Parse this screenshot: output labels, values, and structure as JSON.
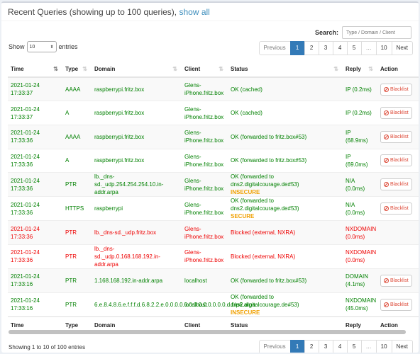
{
  "header": {
    "title": "Recent Queries (showing up to 100 queries),",
    "show_all": "show all"
  },
  "search": {
    "label": "Search:",
    "placeholder": "Type / Domain / Client"
  },
  "length": {
    "show": "Show",
    "value": "10",
    "entries": "entries"
  },
  "pagination": [
    "Previous",
    "1",
    "2",
    "3",
    "4",
    "5",
    "…",
    "10",
    "Next"
  ],
  "columns": [
    "Time",
    "Type",
    "Domain",
    "Client",
    "Status",
    "Reply",
    "Action"
  ],
  "rows": [
    {
      "time": "2021-01-24 17:33:37",
      "type": "AAAA",
      "domain": "raspberrypi.fritz.box",
      "client": "Glens-iPhone.fritz.box",
      "status": "OK (cached)",
      "status2": "",
      "reply": "IP (0.2ms)",
      "action": "Blacklist",
      "blocked": false
    },
    {
      "time": "2021-01-24 17:33:37",
      "type": "A",
      "domain": "raspberrypi.fritz.box",
      "client": "Glens-iPhone.fritz.box",
      "status": "OK (cached)",
      "status2": "",
      "reply": "IP (0.2ms)",
      "action": "Blacklist",
      "blocked": false
    },
    {
      "time": "2021-01-24 17:33:36",
      "type": "AAAA",
      "domain": "raspberrypi.fritz.box",
      "client": "Glens-iPhone.fritz.box",
      "status": "OK (forwarded to fritz.box#53)",
      "status2": "",
      "reply": "IP (68.9ms)",
      "action": "Blacklist",
      "blocked": false
    },
    {
      "time": "2021-01-24 17:33:36",
      "type": "A",
      "domain": "raspberrypi.fritz.box",
      "client": "Glens-iPhone.fritz.box",
      "status": "OK (forwarded to fritz.box#53)",
      "status2": "",
      "reply": "IP (69.0ms)",
      "action": "Blacklist",
      "blocked": false
    },
    {
      "time": "2021-01-24 17:33:36",
      "type": "PTR",
      "domain": "lb._dns-sd._udp.254.254.254.10.in-addr.arpa",
      "client": "Glens-iPhone.fritz.box",
      "status": "OK (forwarded to dns2.digitalcourage.de#53)",
      "status2": "INSECURE",
      "reply": "N/A (0.0ms)",
      "action": "Blacklist",
      "blocked": false
    },
    {
      "time": "2021-01-24 17:33:36",
      "type": "HTTPS",
      "domain": "raspberrypi",
      "client": "Glens-iPhone.fritz.box",
      "status": "OK (forwarded to dns2.digitalcourage.de#53)",
      "status2": "SECURE",
      "reply": "N/A (0.0ms)",
      "action": "Blacklist",
      "blocked": false
    },
    {
      "time": "2021-01-24 17:33:36",
      "type": "PTR",
      "domain": "lb._dns-sd._udp.fritz.box",
      "client": "Glens-iPhone.fritz.box",
      "status": "Blocked (external, NXRA)",
      "status2": "",
      "reply": "NXDOMAIN (0.0ms)",
      "action": "",
      "blocked": true
    },
    {
      "time": "2021-01-24 17:33:36",
      "type": "PTR",
      "domain": "lb._dns-sd._udp.0.168.168.192.in-addr.arpa",
      "client": "Glens-iPhone.fritz.box",
      "status": "Blocked (external, NXRA)",
      "status2": "",
      "reply": "NXDOMAIN (0.0ms)",
      "action": "",
      "blocked": true
    },
    {
      "time": "2021-01-24 17:33:16",
      "type": "PTR",
      "domain": "1.168.168.192.in-addr.arpa",
      "client": "localhost",
      "status": "OK (forwarded to fritz.box#53)",
      "status2": "",
      "reply": "DOMAIN (4.1ms)",
      "action": "Blacklist",
      "blocked": false
    },
    {
      "time": "2021-01-24 17:33:16",
      "type": "PTR",
      "domain": "6.e.8.4.8.6.e.f.f.f.d.6.8.2.2.e.0.0.0.0.0.0.0.0.0.0.0.0.0.d.f.ip6.arpa",
      "client": "localhost",
      "status": "OK (forwarded to dns2.digitalcourage.de#53)",
      "status2": "INSECURE",
      "reply": "NXDOMAIN (45.0ms)",
      "action": "Blacklist",
      "blocked": false
    }
  ],
  "info": "Showing 1 to 10 of 100 entries"
}
